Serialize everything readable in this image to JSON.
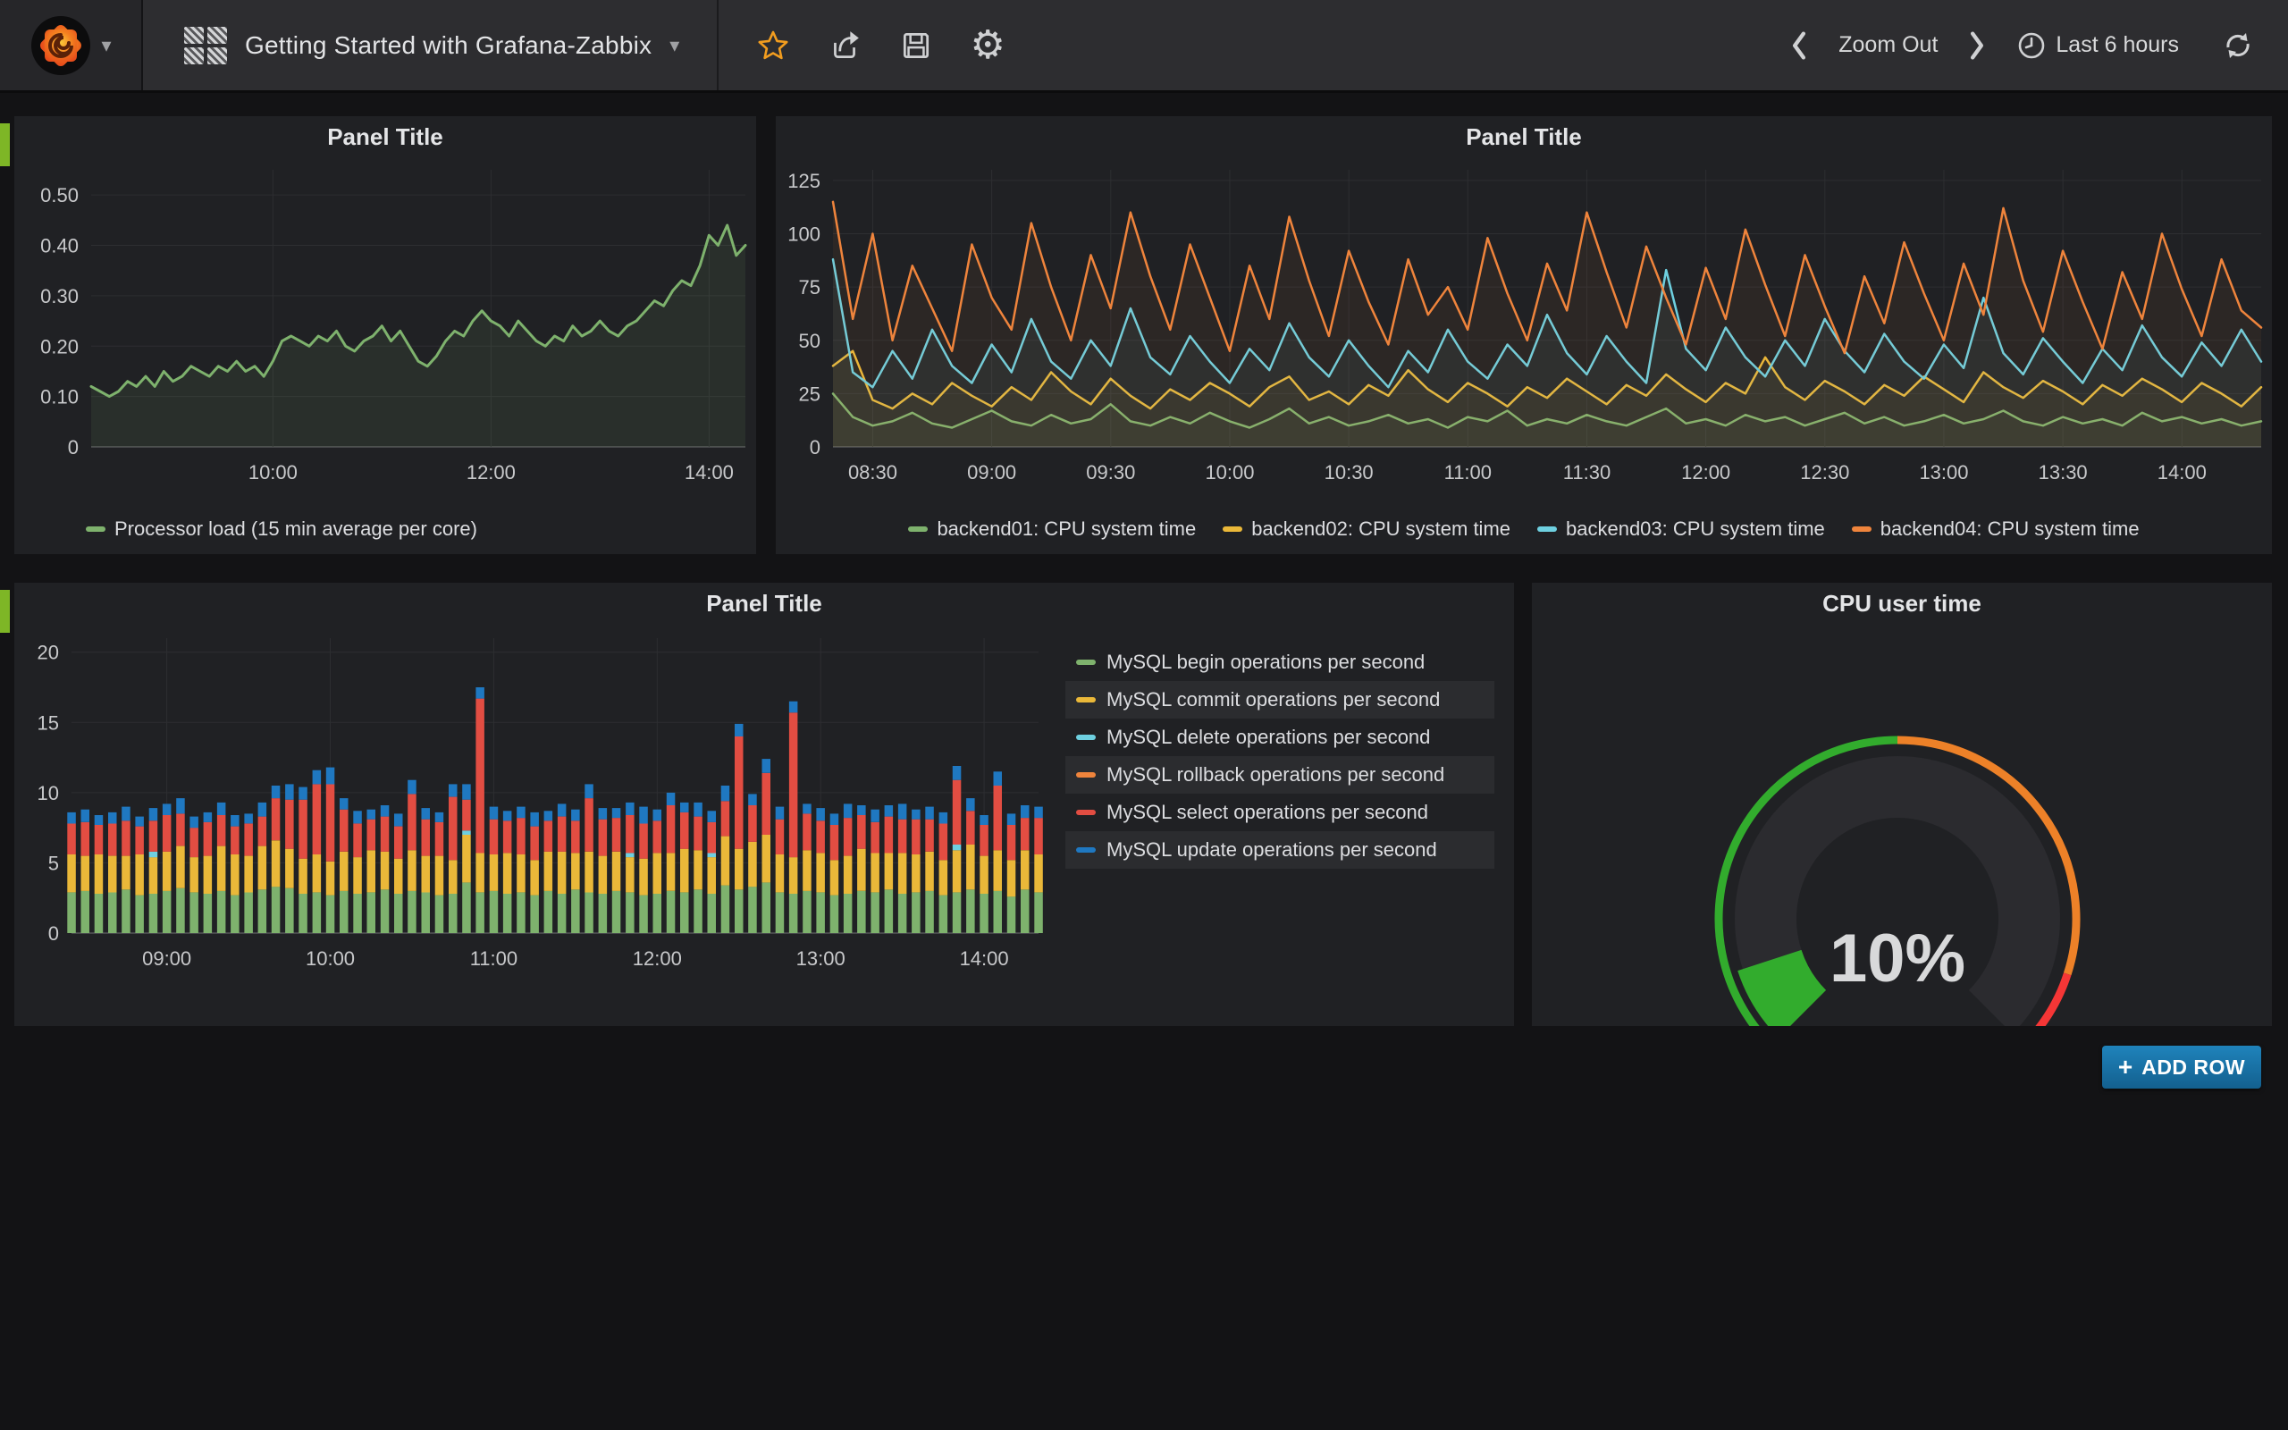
{
  "navbar": {
    "title": "Getting Started with Grafana-Zabbix",
    "zoom_out": "Zoom Out",
    "time_range": "Last 6 hours"
  },
  "add_row": {
    "plus": "+",
    "label": "ADD ROW"
  },
  "panels": [
    {
      "title": "Panel Title"
    },
    {
      "title": "Panel Title"
    },
    {
      "title": "Panel Title"
    },
    {
      "title": "CPU user time"
    }
  ],
  "colors": {
    "green": "#7EB26D",
    "yellow": "#EAB839",
    "cyan": "#6ED0E0",
    "orange": "#EF843C",
    "red": "#E24D42",
    "blue": "#1F78C1",
    "accent_tab": "#7eb626",
    "add_row_blue": "#1f83bb",
    "gauge_green": "rgb(50,172,45)",
    "gauge_orange": "rgb(237,129,40)",
    "gauge_red": "rgb(245,54,54)"
  },
  "chart_data": [
    {
      "type": "line",
      "title": "Panel Title",
      "xmin": 8.333,
      "xmax": 14.333,
      "ymin": 0,
      "ymax": 0.55,
      "grid": true,
      "legend_position": "bottom",
      "yticks": [
        {
          "v": 0,
          "label": "0"
        },
        {
          "v": 0.1,
          "label": "0.10"
        },
        {
          "v": 0.2,
          "label": "0.20"
        },
        {
          "v": 0.3,
          "label": "0.30"
        },
        {
          "v": 0.4,
          "label": "0.40"
        },
        {
          "v": 0.5,
          "label": "0.50"
        }
      ],
      "xticks": [
        {
          "v": 10,
          "label": "10:00"
        },
        {
          "v": 12,
          "label": "12:00"
        },
        {
          "v": 14,
          "label": "14:00"
        }
      ],
      "series": [
        {
          "name": "Processor load (15 min average per core)",
          "color": "#7EB26D",
          "width": 3,
          "fill": 0.1,
          "values": [
            0.12,
            0.11,
            0.1,
            0.11,
            0.13,
            0.12,
            0.14,
            0.12,
            0.15,
            0.13,
            0.14,
            0.16,
            0.15,
            0.14,
            0.16,
            0.15,
            0.17,
            0.15,
            0.16,
            0.14,
            0.17,
            0.21,
            0.22,
            0.21,
            0.2,
            0.22,
            0.21,
            0.23,
            0.2,
            0.19,
            0.21,
            0.22,
            0.24,
            0.21,
            0.23,
            0.2,
            0.17,
            0.16,
            0.18,
            0.21,
            0.23,
            0.22,
            0.25,
            0.27,
            0.25,
            0.24,
            0.22,
            0.25,
            0.23,
            0.21,
            0.2,
            0.22,
            0.21,
            0.24,
            0.22,
            0.23,
            0.25,
            0.23,
            0.22,
            0.24,
            0.25,
            0.27,
            0.29,
            0.28,
            0.31,
            0.33,
            0.32,
            0.36,
            0.42,
            0.4,
            0.44,
            0.38,
            0.4
          ]
        }
      ]
    },
    {
      "type": "line",
      "title": "Panel Title",
      "xmin": 8.333,
      "xmax": 14.333,
      "ymin": 0,
      "ymax": 130,
      "grid": true,
      "legend_position": "bottom",
      "yticks": [
        {
          "v": 0,
          "label": "0"
        },
        {
          "v": 25,
          "label": "25"
        },
        {
          "v": 50,
          "label": "50"
        },
        {
          "v": 75,
          "label": "75"
        },
        {
          "v": 100,
          "label": "100"
        },
        {
          "v": 125,
          "label": "125"
        }
      ],
      "xticks": [
        {
          "v": 8.5,
          "label": "08:30"
        },
        {
          "v": 9,
          "label": "09:00"
        },
        {
          "v": 9.5,
          "label": "09:30"
        },
        {
          "v": 10,
          "label": "10:00"
        },
        {
          "v": 10.5,
          "label": "10:30"
        },
        {
          "v": 11,
          "label": "11:00"
        },
        {
          "v": 11.5,
          "label": "11:30"
        },
        {
          "v": 12,
          "label": "12:00"
        },
        {
          "v": 12.5,
          "label": "12:30"
        },
        {
          "v": 13,
          "label": "13:00"
        },
        {
          "v": 13.5,
          "label": "13:30"
        },
        {
          "v": 14,
          "label": "14:00"
        }
      ],
      "series": [
        {
          "name": "backend01: CPU system time",
          "color": "#7EB26D",
          "width": 2.5,
          "fill": 0.06,
          "values": [
            25,
            14,
            10,
            12,
            16,
            11,
            9,
            13,
            17,
            12,
            10,
            15,
            11,
            13,
            20,
            12,
            10,
            14,
            11,
            16,
            12,
            9,
            13,
            18,
            11,
            14,
            10,
            12,
            15,
            11,
            13,
            9,
            14,
            12,
            17,
            10,
            13,
            11,
            15,
            12,
            10,
            14,
            18,
            11,
            13,
            10,
            15,
            12,
            14,
            10,
            13,
            16,
            11,
            14,
            10,
            12,
            15,
            11,
            13,
            17,
            12,
            10,
            14,
            11,
            13,
            10,
            16,
            12,
            14,
            11,
            13,
            10,
            12
          ]
        },
        {
          "name": "backend02: CPU system time",
          "color": "#EAB839",
          "width": 2.5,
          "fill": 0.06,
          "values": [
            38,
            45,
            22,
            18,
            25,
            20,
            30,
            24,
            19,
            28,
            22,
            35,
            26,
            20,
            32,
            24,
            18,
            27,
            22,
            30,
            25,
            19,
            28,
            33,
            22,
            26,
            20,
            29,
            24,
            36,
            27,
            21,
            30,
            25,
            19,
            28,
            23,
            32,
            26,
            20,
            29,
            24,
            34,
            27,
            21,
            30,
            25,
            42,
            28,
            22,
            31,
            26,
            20,
            29,
            24,
            33,
            27,
            21,
            35,
            28,
            23,
            31,
            26,
            20,
            29,
            24,
            32,
            27,
            21,
            30,
            25,
            19,
            28
          ]
        },
        {
          "name": "backend03: CPU system time",
          "color": "#6ED0E0",
          "width": 2.5,
          "fill": 0.06,
          "values": [
            88,
            35,
            28,
            45,
            32,
            55,
            38,
            30,
            48,
            35,
            60,
            40,
            32,
            50,
            38,
            65,
            42,
            34,
            52,
            40,
            30,
            46,
            36,
            58,
            42,
            33,
            50,
            38,
            28,
            45,
            35,
            55,
            40,
            32,
            48,
            38,
            62,
            44,
            34,
            52,
            40,
            30,
            83,
            46,
            36,
            56,
            42,
            33,
            50,
            38,
            60,
            45,
            35,
            53,
            40,
            32,
            48,
            37,
            70,
            44,
            34,
            51,
            40,
            30,
            46,
            36,
            57,
            42,
            33,
            49,
            38,
            55,
            40
          ]
        },
        {
          "name": "backend04: CPU system time",
          "color": "#EF843C",
          "width": 2.5,
          "fill": 0.06,
          "values": [
            115,
            60,
            100,
            50,
            85,
            65,
            45,
            95,
            70,
            55,
            105,
            75,
            50,
            90,
            65,
            110,
            80,
            55,
            95,
            70,
            45,
            85,
            60,
            108,
            78,
            52,
            92,
            68,
            48,
            88,
            62,
            75,
            55,
            98,
            72,
            50,
            86,
            64,
            110,
            82,
            56,
            94,
            70,
            48,
            84,
            60,
            102,
            76,
            52,
            90,
            66,
            44,
            80,
            58,
            96,
            72,
            50,
            86,
            62,
            112,
            78,
            54,
            92,
            68,
            46,
            82,
            60,
            100,
            74,
            52,
            88,
            64,
            56
          ]
        }
      ]
    },
    {
      "type": "bar_stacked",
      "title": "Panel Title",
      "xmin": 8.417,
      "xmax": 14.333,
      "ymin": 0,
      "ymax": 21,
      "grid": true,
      "legend_position": "right",
      "yticks": [
        {
          "v": 0,
          "label": "0"
        },
        {
          "v": 5,
          "label": "5"
        },
        {
          "v": 10,
          "label": "10"
        },
        {
          "v": 15,
          "label": "15"
        },
        {
          "v": 20,
          "label": "20"
        }
      ],
      "xticks": [
        {
          "v": 9,
          "label": "09:00"
        },
        {
          "v": 10,
          "label": "10:00"
        },
        {
          "v": 11,
          "label": "11:00"
        },
        {
          "v": 12,
          "label": "12:00"
        },
        {
          "v": 13,
          "label": "13:00"
        },
        {
          "v": 14,
          "label": "14:00"
        }
      ],
      "series": [
        {
          "name": "MySQL begin operations per second",
          "color": "#7EB26D",
          "values": [
            2.9,
            3.0,
            2.8,
            2.9,
            3.1,
            2.7,
            2.8,
            3.0,
            3.2,
            2.9,
            2.8,
            3.0,
            2.7,
            2.9,
            3.1,
            3.3,
            3.2,
            2.8,
            2.9,
            2.7,
            3.0,
            2.8,
            2.9,
            3.1,
            2.8,
            3.0,
            2.9,
            2.7,
            2.8,
            3.6,
            2.9,
            3.0,
            2.8,
            2.9,
            2.7,
            3.0,
            2.8,
            3.1,
            2.9,
            2.8,
            3.0,
            2.9,
            2.7,
            2.8,
            3.0,
            2.9,
            3.1,
            2.8,
            3.4,
            3.1,
            3.3,
            3.6,
            2.9,
            2.8,
            3.0,
            2.9,
            2.7,
            2.8,
            3.0,
            2.9,
            3.1,
            2.8,
            2.9,
            3.0,
            2.7,
            2.9,
            3.1,
            2.8,
            3.0,
            2.6,
            3.1,
            2.9
          ]
        },
        {
          "name": "MySQL commit operations per second",
          "color": "#EAB839",
          "values": [
            2.7,
            2.5,
            2.8,
            2.6,
            2.4,
            2.9,
            2.6,
            2.8,
            3.0,
            2.5,
            2.7,
            3.2,
            2.9,
            2.6,
            3.1,
            3.3,
            2.8,
            2.5,
            2.7,
            2.4,
            2.8,
            2.6,
            3.0,
            2.7,
            2.5,
            2.9,
            2.6,
            2.8,
            2.4,
            3.4,
            2.8,
            2.6,
            2.9,
            2.7,
            2.5,
            2.8,
            3.0,
            2.6,
            2.9,
            2.7,
            2.8,
            2.5,
            2.6,
            2.9,
            2.7,
            3.1,
            2.8,
            2.6,
            3.5,
            2.9,
            3.2,
            3.4,
            2.7,
            2.6,
            2.9,
            2.8,
            2.5,
            2.7,
            3.0,
            2.8,
            2.6,
            2.9,
            2.7,
            2.8,
            2.5,
            3.0,
            3.2,
            2.7,
            2.9,
            2.6,
            2.8,
            2.7
          ]
        },
        {
          "name": "MySQL delete operations per second",
          "color": "#6ED0E0",
          "values": [
            0,
            0,
            0,
            0,
            0,
            0,
            0.4,
            0,
            0,
            0,
            0,
            0,
            0,
            0,
            0,
            0,
            0,
            0,
            0,
            0,
            0,
            0,
            0,
            0,
            0,
            0,
            0,
            0,
            0,
            0.3,
            0,
            0,
            0,
            0,
            0,
            0,
            0,
            0,
            0,
            0,
            0,
            0.3,
            0,
            0,
            0,
            0,
            0,
            0.3,
            0,
            0,
            0,
            0,
            0,
            0,
            0,
            0,
            0,
            0,
            0,
            0,
            0,
            0,
            0,
            0,
            0,
            0.4,
            0,
            0,
            0,
            0,
            0,
            0
          ]
        },
        {
          "name": "MySQL rollback operations per second",
          "color": "#EF843C",
          "values": [
            0,
            0,
            0,
            0,
            0,
            0,
            0,
            0,
            0,
            0,
            0,
            0,
            0,
            0,
            0,
            0,
            0,
            0,
            0,
            0,
            0,
            0,
            0,
            0,
            0,
            0,
            0,
            0,
            0,
            0,
            0,
            0,
            0,
            0,
            0,
            0,
            0,
            0,
            0,
            0,
            0,
            0,
            0,
            0,
            0,
            0,
            0,
            0,
            0,
            0,
            0,
            0,
            0,
            0,
            0,
            0,
            0,
            0,
            0,
            0,
            0,
            0,
            0,
            0,
            0,
            0,
            0,
            0,
            0,
            0,
            0,
            0
          ]
        },
        {
          "name": "MySQL select operations per second",
          "color": "#E24D42",
          "values": [
            2.2,
            2.4,
            2.1,
            2.3,
            2.5,
            2.0,
            2.2,
            2.6,
            2.3,
            2.1,
            2.4,
            2.2,
            2.0,
            2.3,
            2.1,
            3.0,
            3.5,
            4.2,
            5.0,
            5.5,
            3.0,
            2.4,
            2.2,
            2.5,
            2.3,
            4.0,
            2.6,
            2.4,
            4.5,
            2.2,
            11.0,
            2.5,
            2.3,
            2.6,
            2.4,
            2.2,
            2.5,
            2.3,
            3.8,
            2.6,
            2.4,
            2.7,
            2.5,
            2.3,
            3.4,
            2.6,
            2.4,
            2.2,
            2.5,
            8.0,
            2.6,
            4.4,
            2.5,
            10.3,
            2.6,
            2.3,
            2.5,
            2.7,
            2.4,
            2.2,
            2.6,
            2.4,
            2.5,
            2.3,
            2.6,
            4.6,
            2.4,
            2.2,
            4.6,
            2.5,
            2.3,
            2.6
          ]
        },
        {
          "name": "MySQL update operations per second",
          "color": "#1F78C1",
          "values": [
            0.8,
            0.9,
            0.7,
            0.8,
            1.0,
            0.7,
            0.9,
            0.8,
            1.1,
            0.8,
            0.7,
            0.9,
            0.8,
            0.7,
            1.0,
            0.9,
            1.1,
            0.9,
            1.0,
            1.2,
            0.8,
            0.9,
            0.7,
            0.8,
            0.9,
            1.0,
            0.8,
            0.7,
            0.9,
            1.1,
            0.8,
            0.9,
            0.7,
            0.8,
            1.0,
            0.7,
            0.9,
            0.8,
            1.0,
            0.8,
            0.7,
            0.9,
            1.2,
            0.8,
            0.9,
            0.7,
            1.0,
            0.8,
            1.1,
            0.9,
            0.8,
            1.0,
            0.9,
            0.8,
            0.7,
            0.9,
            0.8,
            1.0,
            0.7,
            0.9,
            0.8,
            1.1,
            0.7,
            0.9,
            0.8,
            1.0,
            0.9,
            0.7,
            1.0,
            0.8,
            0.9,
            0.8
          ]
        }
      ]
    },
    {
      "type": "gauge",
      "title": "CPU user time",
      "value": 10,
      "unit": "%",
      "text": "10%",
      "min": 0,
      "max": 100,
      "span_degrees": 270,
      "thresholds": [
        {
          "to": 50,
          "color": "rgb(50,172,45)"
        },
        {
          "to": 90,
          "color": "rgb(237,129,40)"
        },
        {
          "to": 100,
          "color": "rgb(245,54,54)"
        }
      ],
      "value_color": "rgb(50,172,45)"
    }
  ]
}
